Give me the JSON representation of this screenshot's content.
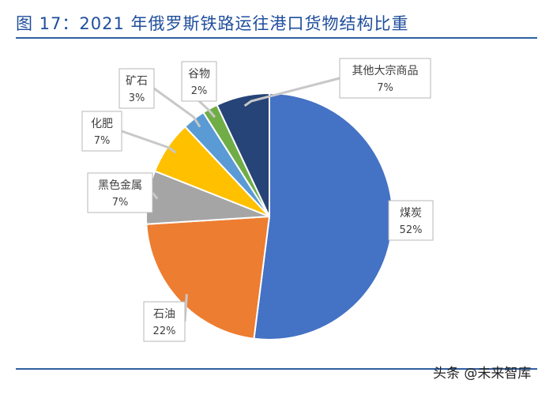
{
  "figure": {
    "title": "图 17：2021 年俄罗斯铁路运往港口货物结构比重",
    "watermark": "头条 @未来智库"
  },
  "chart_data": {
    "type": "pie",
    "title": "图 17：2021 年俄罗斯铁路运往港口货物结构比重",
    "unit": "%",
    "legend": "none",
    "slices": [
      {
        "label": "煤炭",
        "value": 52,
        "value_label": "52%",
        "color": "#4472c4"
      },
      {
        "label": "石油",
        "value": 22,
        "value_label": "22%",
        "color": "#ed7d31"
      },
      {
        "label": "黑色金属",
        "value": 7,
        "value_label": "7%",
        "color": "#a5a5a5"
      },
      {
        "label": "化肥",
        "value": 7,
        "value_label": "7%",
        "color": "#ffc000"
      },
      {
        "label": "矿石",
        "value": 3,
        "value_label": "3%",
        "color": "#5b9bd5"
      },
      {
        "label": "谷物",
        "value": 2,
        "value_label": "2%",
        "color": "#70ad47"
      },
      {
        "label": "其他大宗商品",
        "value": 7,
        "value_label": "7%",
        "color": "#264478"
      }
    ]
  }
}
